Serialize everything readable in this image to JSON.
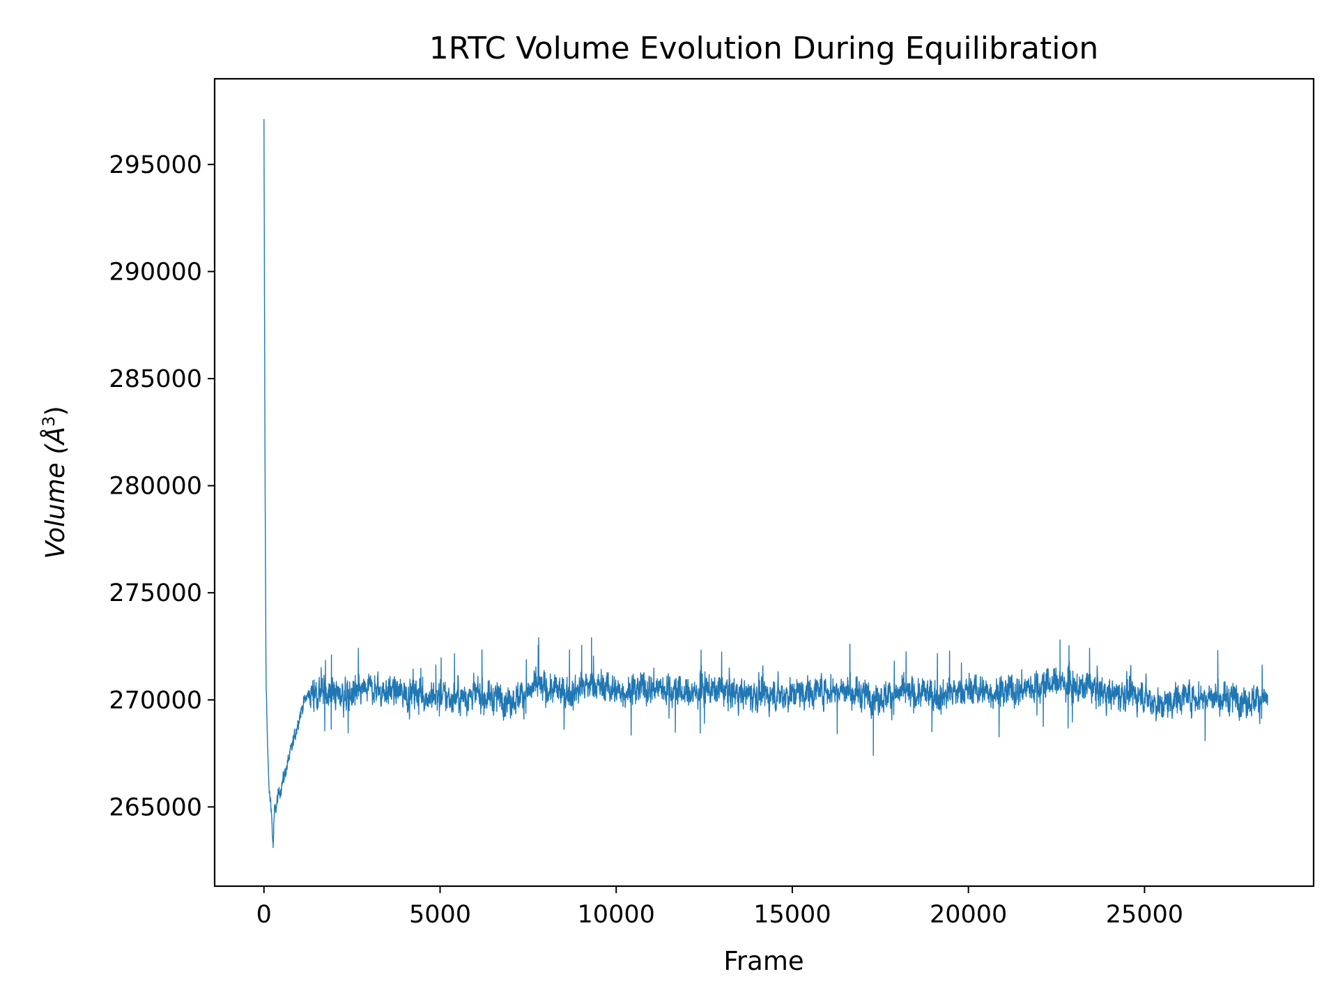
{
  "chart_data": {
    "type": "line",
    "title": "1RTC Volume Evolution During Equilibration",
    "xlabel": "Frame",
    "ylabel": "Volume (Å³)",
    "ylabel_parts": {
      "main": "Volume (",
      "unit": "Å",
      "sup": "3",
      "close": ")"
    },
    "xlim": [
      -1400,
      29800
    ],
    "ylim": [
      261300,
      299000
    ],
    "xticks": [
      0,
      5000,
      10000,
      15000,
      20000,
      25000
    ],
    "xtick_labels": [
      "0",
      "5000",
      "10000",
      "15000",
      "20000",
      "25000"
    ],
    "yticks": [
      265000,
      270000,
      275000,
      280000,
      285000,
      290000,
      295000
    ],
    "ytick_labels": [
      "265000",
      "270000",
      "275000",
      "280000",
      "285000",
      "290000",
      "295000"
    ],
    "grid": false,
    "series": [
      {
        "color": "#1f77b4",
        "frame_count": 28500,
        "x": [
          0,
          30,
          60,
          100,
          150,
          200,
          260,
          300,
          350,
          400,
          500,
          600,
          700,
          800,
          900,
          1000,
          1100,
          1200,
          1300,
          1500,
          2000,
          2500,
          3000,
          3500,
          4000,
          5000,
          6000,
          7000,
          7800,
          8500,
          9300,
          10000,
          11000,
          12000,
          13000,
          14000,
          15000,
          16000,
          16600,
          17300,
          18000,
          19000,
          20000,
          21000,
          22000,
          22600,
          23000,
          23400,
          24000,
          25000,
          25500,
          26000,
          27000,
          28000,
          28400
        ],
        "values": [
          297100,
          281000,
          271000,
          268000,
          265600,
          265200,
          263100,
          264800,
          265000,
          265500,
          266000,
          266600,
          267200,
          267800,
          268500,
          269200,
          269700,
          270100,
          270300,
          270400,
          270300,
          270200,
          270500,
          270400,
          270300,
          270100,
          270200,
          270000,
          270600,
          270300,
          270700,
          270400,
          270600,
          270300,
          270500,
          270200,
          270300,
          270500,
          270400,
          270100,
          270300,
          270200,
          270400,
          270400,
          270600,
          270900,
          270400,
          270700,
          270300,
          270200,
          269700,
          270200,
          270100,
          270000,
          270100
        ],
        "noise_amplitude": 900,
        "extremes": [
          {
            "x": 0,
            "value": 297100
          },
          {
            "x": 260,
            "value": 263100
          },
          {
            "x": 7800,
            "value": 272900
          },
          {
            "x": 9300,
            "value": 272900
          },
          {
            "x": 17300,
            "value": 267400
          },
          {
            "x": 22600,
            "value": 272800
          }
        ]
      }
    ]
  }
}
